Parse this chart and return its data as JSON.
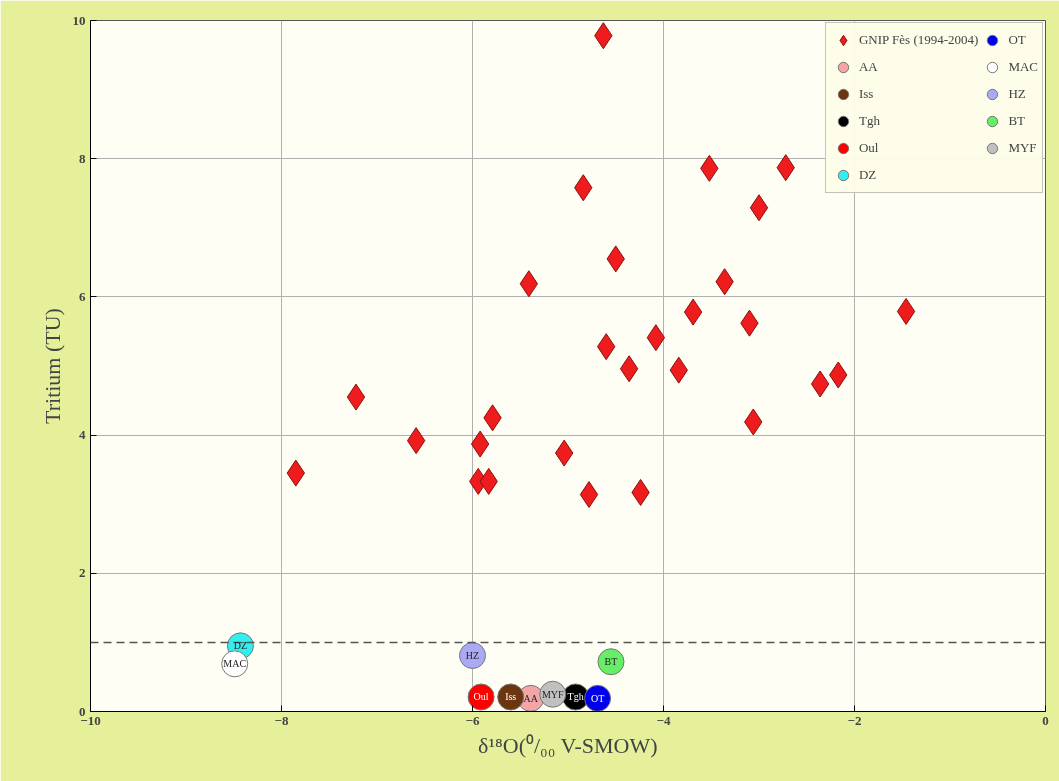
{
  "chart_data": {
    "type": "scatter",
    "xlabel": "δ¹⁸O(⁰/₀₀ V-SMOW)",
    "ylabel": "Tritium (TU)",
    "xlim": [
      -10,
      0
    ],
    "ylim": [
      0,
      10
    ],
    "xticks": [
      -10,
      -8,
      -6,
      -4,
      -2,
      0
    ],
    "yticks": [
      0,
      2,
      4,
      6,
      8,
      10
    ],
    "grid": true,
    "legend": "top right",
    "ref_lines": [
      {
        "axis": "y",
        "value": 1,
        "label": null,
        "color": "#555555",
        "line_style": "dashed"
      }
    ],
    "series": [
      {
        "name": "GNIP Fès (1994-2004)",
        "color": "#ee1c1c",
        "marker": "diamond",
        "x": [
          -4.63,
          -3.52,
          -2.72,
          -4.84,
          -3.0,
          -4.5,
          -3.36,
          -5.41,
          -1.46,
          -3.69,
          -3.1,
          -4.6,
          -4.08,
          -4.36,
          -3.84,
          -2.36,
          -2.17,
          -7.22,
          -5.79,
          -3.06,
          -6.59,
          -5.92,
          -5.04,
          -7.85,
          -5.94,
          -5.83,
          -4.78,
          -4.24
        ],
        "values": [
          9.78,
          7.86,
          7.87,
          7.58,
          7.29,
          6.55,
          6.22,
          6.19,
          5.79,
          5.78,
          5.62,
          5.28,
          5.41,
          4.96,
          4.94,
          4.74,
          4.87,
          4.55,
          4.25,
          4.19,
          3.92,
          3.87,
          3.74,
          3.45,
          3.33,
          3.33,
          3.14,
          3.17
        ]
      },
      {
        "name": "AA",
        "color": "#f4a6a6",
        "marker": "circle",
        "x": [
          -5.39
        ],
        "values": [
          0.19
        ]
      },
      {
        "name": "Iss",
        "color": "#6b3510",
        "marker": "circle",
        "x": [
          -5.6
        ],
        "values": [
          0.21
        ]
      },
      {
        "name": "Tgh",
        "color": "#000000",
        "marker": "circle",
        "x": [
          -4.92
        ],
        "values": [
          0.21
        ]
      },
      {
        "name": "Oul",
        "color": "#ff0000",
        "marker": "circle",
        "x": [
          -5.91
        ],
        "values": [
          0.21
        ]
      },
      {
        "name": "DZ",
        "color": "#33eeee",
        "marker": "circle",
        "x": [
          -8.43
        ],
        "values": [
          0.95
        ]
      },
      {
        "name": "OT",
        "color": "#0000ee",
        "marker": "circle",
        "x": [
          -4.69
        ],
        "values": [
          0.19
        ]
      },
      {
        "name": "MAC",
        "color": "#ffffff",
        "marker": "circle",
        "x": [
          -8.49
        ],
        "values": [
          0.69
        ]
      },
      {
        "name": "HZ",
        "color": "#a9a9f5",
        "marker": "circle",
        "x": [
          -6.0
        ],
        "values": [
          0.81
        ]
      },
      {
        "name": "BT",
        "color": "#66ee66",
        "marker": "circle",
        "x": [
          -4.55
        ],
        "values": [
          0.72
        ]
      },
      {
        "name": "MYF",
        "color": "#c0c0c0",
        "marker": "circle",
        "x": [
          -5.16
        ],
        "values": [
          0.25
        ]
      }
    ]
  }
}
